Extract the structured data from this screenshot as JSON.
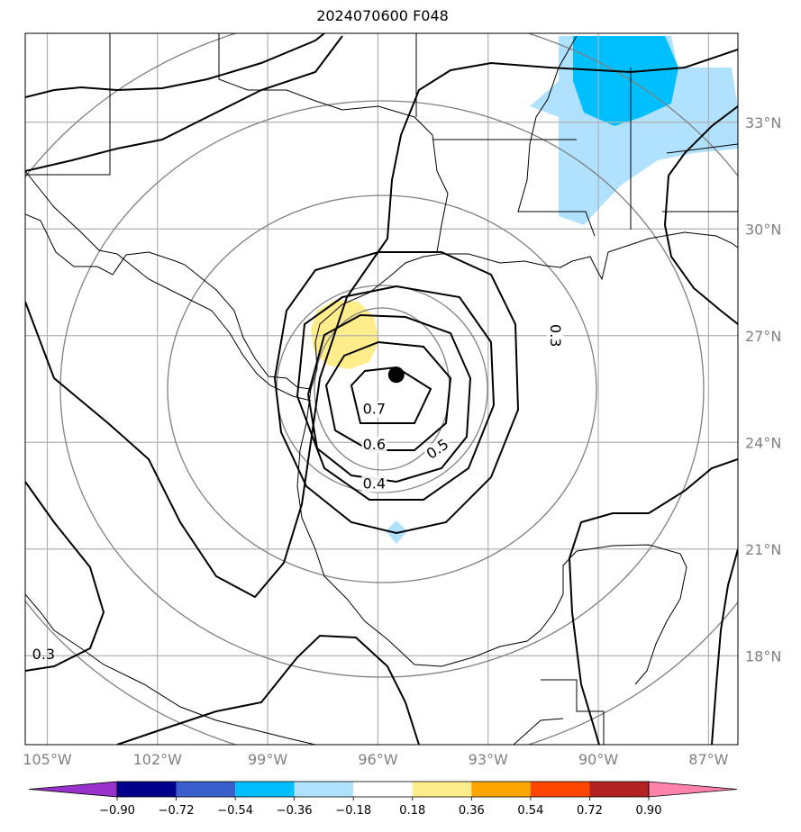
{
  "title": "2024070600 F048",
  "map": {
    "lon_range": [
      -105.6,
      -86.2
    ],
    "lat_range": [
      15.5,
      35.5
    ],
    "center_marker": {
      "lon": -95.5,
      "lat": 25.9
    },
    "lon_ticks": [
      {
        "value": -105,
        "label": "105°W"
      },
      {
        "value": -102,
        "label": "102°W"
      },
      {
        "value": -99,
        "label": "99°W"
      },
      {
        "value": -96,
        "label": "96°W"
      },
      {
        "value": -93,
        "label": "93°W"
      },
      {
        "value": -90,
        "label": "90°W"
      },
      {
        "value": -87,
        "label": "87°W"
      }
    ],
    "lat_ticks": [
      {
        "value": 33,
        "label": "33°N"
      },
      {
        "value": 30,
        "label": "30°N"
      },
      {
        "value": 27,
        "label": "27°N"
      },
      {
        "value": 24,
        "label": "24°N"
      },
      {
        "value": 21,
        "label": "21°N"
      },
      {
        "value": 18,
        "label": "18°N"
      }
    ],
    "contour_labels": [
      {
        "text": "0.7",
        "lon": -96.1,
        "lat": 24.8
      },
      {
        "text": "0.6",
        "lon": -96.1,
        "lat": 23.8
      },
      {
        "text": "0.5",
        "lon": -94.3,
        "lat": 23.7
      },
      {
        "text": "0.4",
        "lon": -96.1,
        "lat": 22.7
      },
      {
        "text": "0.3",
        "lon": -91.3,
        "lat": 27.0
      },
      {
        "text": "0.3",
        "lon": -105.1,
        "lat": 17.9
      }
    ]
  },
  "colorbar": {
    "colors": [
      "#9932cc",
      "#00008b",
      "#3a5fcd",
      "#00bfff",
      "#b0e2ff",
      "#ffffff",
      "#ffec8b",
      "#ffa500",
      "#ff4500",
      "#b22222",
      "#ff82ab"
    ],
    "tick_labels": [
      "−0.90",
      "−0.72",
      "−0.54",
      "−0.36",
      "−0.18",
      "0.18",
      "0.36",
      "0.54",
      "0.72",
      "0.90"
    ]
  }
}
